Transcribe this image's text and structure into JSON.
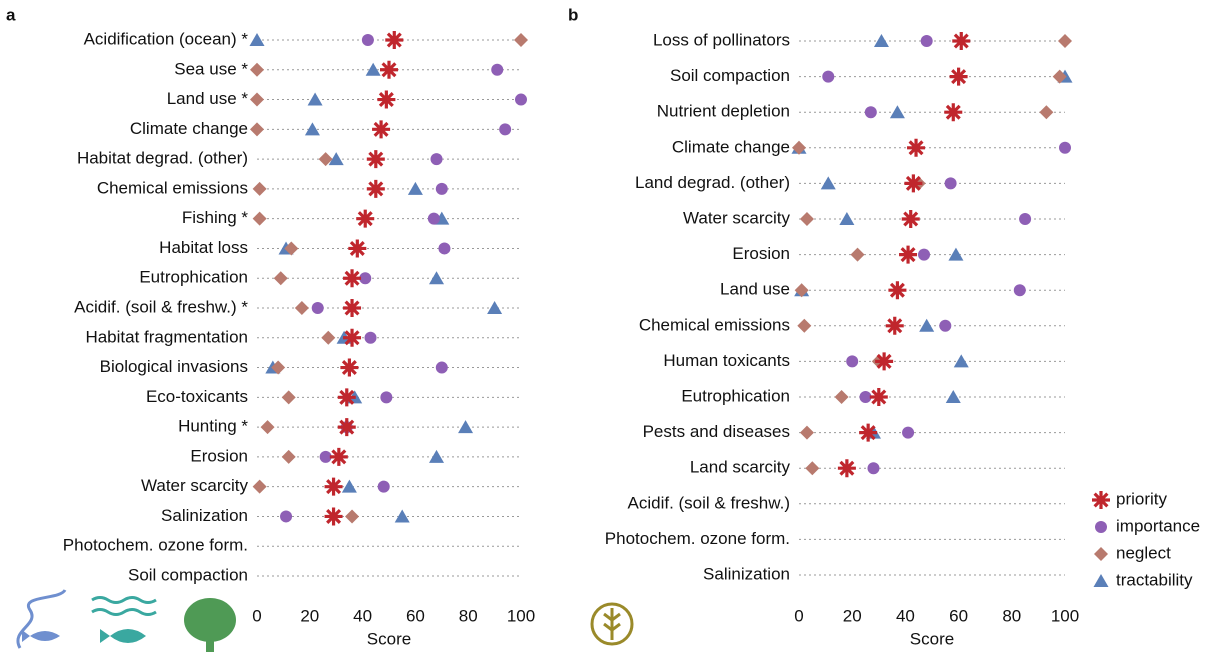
{
  "chart_data": [
    {
      "type": "dot",
      "label": "a",
      "x_label": "Score",
      "categories": [
        "Acidification (ocean) *",
        "Sea use *",
        "Land use *",
        "Climate change",
        "Habitat degrad. (other)",
        "Chemical emissions",
        "Fishing *",
        "Habitat loss",
        "Eutrophication",
        "Acidif. (soil & freshw.) *",
        "Habitat fragmentation",
        "Biological invasions",
        "Eco-toxicants",
        "Hunting *",
        "Erosion",
        "Water scarcity",
        "Salinization",
        "Photochem. ozone form.",
        "Soil compaction"
      ],
      "series": [
        {
          "name": "priority",
          "color": "#c0262d",
          "marker": "asterisk",
          "values": [
            52,
            50,
            49,
            47,
            45,
            45,
            41,
            38,
            36,
            36,
            36,
            35,
            34,
            34,
            31,
            29,
            29,
            null,
            null
          ]
        },
        {
          "name": "importance",
          "color": "#8e5fb5",
          "marker": "circle",
          "values": [
            42,
            91,
            100,
            94,
            68,
            70,
            67,
            71,
            41,
            23,
            43,
            70,
            49,
            34,
            26,
            48,
            11,
            null,
            null
          ]
        },
        {
          "name": "neglect",
          "color": "#b87a6e",
          "marker": "diamond",
          "values": [
            100,
            0,
            0,
            0,
            26,
            1,
            1,
            13,
            9,
            17,
            27,
            8,
            12,
            4,
            12,
            1,
            36,
            null,
            null
          ]
        },
        {
          "name": "tractability",
          "color": "#5a7fb8",
          "marker": "triangle",
          "values": [
            0,
            44,
            22,
            21,
            30,
            60,
            70,
            11,
            68,
            90,
            33,
            6,
            37,
            79,
            68,
            35,
            55,
            null,
            null
          ]
        }
      ],
      "xlim": [
        0,
        100
      ],
      "xticks": [
        0,
        20,
        40,
        60,
        80,
        100
      ],
      "grid": true,
      "legend": "none"
    },
    {
      "type": "dot",
      "label": "b",
      "x_label": "Score",
      "categories": [
        "Loss of pollinators",
        "Soil compaction",
        "Nutrient depletion",
        "Climate change",
        "Land degrad. (other)",
        "Water scarcity",
        "Erosion",
        "Land use",
        "Chemical emissions",
        "Human toxicants",
        "Eutrophication",
        "Pests and diseases",
        "Land scarcity",
        "Acidif. (soil & freshw.)",
        "Photochem. ozone form.",
        "Salinization"
      ],
      "series": [
        {
          "name": "priority",
          "color": "#c0262d",
          "marker": "asterisk",
          "values": [
            61,
            60,
            58,
            44,
            43,
            42,
            41,
            37,
            36,
            32,
            30,
            26,
            18,
            null,
            null,
            null
          ]
        },
        {
          "name": "importance",
          "color": "#8e5fb5",
          "marker": "circle",
          "values": [
            48,
            11,
            27,
            100,
            57,
            85,
            47,
            83,
            55,
            20,
            25,
            41,
            28,
            null,
            null,
            null
          ]
        },
        {
          "name": "neglect",
          "color": "#b87a6e",
          "marker": "diamond",
          "values": [
            100,
            98,
            93,
            0,
            45,
            3,
            22,
            1,
            2,
            30,
            16,
            3,
            5,
            null,
            null,
            null
          ]
        },
        {
          "name": "tractability",
          "color": "#5a7fb8",
          "marker": "triangle",
          "values": [
            31,
            100,
            37,
            0,
            11,
            18,
            59,
            1,
            48,
            61,
            58,
            28,
            null,
            null,
            null,
            null
          ]
        }
      ],
      "xlim": [
        0,
        100
      ],
      "xticks": [
        0,
        20,
        40,
        60,
        80,
        100
      ],
      "grid": true,
      "legend": "lower right"
    }
  ]
}
